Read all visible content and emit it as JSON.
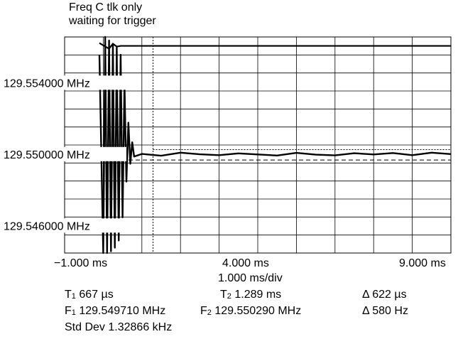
{
  "status": {
    "line1": "Freq C tlk only",
    "line2": "waiting for trigger"
  },
  "chart_data": {
    "type": "line",
    "title": "",
    "y_tick_labels": [
      "129.554000 MHz",
      "129.550000 MHz",
      "129.546000 MHz"
    ],
    "y_ticks_mhz": [
      129.554,
      129.55,
      129.546
    ],
    "x_tick_labels": [
      "−1.000 ms",
      "4.000 ms",
      "9.000 ms"
    ],
    "x_ticks_ms": [
      -1.0,
      4.0,
      9.0
    ],
    "x_range_ms": [
      -1.0,
      9.0
    ],
    "y_range_mhz": [
      129.5445,
      129.5566
    ],
    "timebase": "1.000 ms/div",
    "grid": true,
    "divisions": {
      "x": 10,
      "y": 12
    },
    "markers": {
      "t1_ms": 0.667,
      "t2_ms": 1.289,
      "f1_mhz": 129.54971,
      "f2_mhz": 129.55029
    },
    "series": [
      {
        "x": [
          -0.1,
          0.0,
          0.05,
          0.1,
          0.15,
          0.2,
          0.25,
          0.3,
          0.35,
          0.4,
          0.45,
          0.5,
          0.55,
          0.6,
          0.65,
          0.7,
          0.75,
          0.8,
          1.0,
          1.5,
          2.0,
          2.5,
          3.0,
          3.5,
          4.0,
          4.5,
          5.0,
          5.5,
          6.0,
          6.5,
          7.0,
          7.5,
          8.0,
          8.5,
          9.0
        ],
        "y": [
          129.5556,
          129.5445,
          129.5566,
          129.5445,
          129.5564,
          129.5446,
          129.5562,
          129.5448,
          129.556,
          129.5452,
          129.5556,
          129.5465,
          129.554,
          129.5485,
          129.5518,
          129.5495,
          129.5507,
          129.5499,
          129.55005,
          129.54995,
          129.55012,
          129.55003,
          129.54998,
          129.55008,
          129.55002,
          129.54996,
          129.55011,
          129.55001,
          129.54997,
          129.55009,
          129.55002,
          129.5501,
          129.54998,
          129.55012,
          129.55004
        ]
      }
    ],
    "upper_trace_mhz": 129.5561
  },
  "measurements": {
    "t1_label": "667 µs",
    "t2_label": "1.289 ms",
    "dt_label": "622 µs",
    "f1_label": "129.549710 MHz",
    "f2_label": "129.550290 MHz",
    "df_label": "580 Hz",
    "std_dev_label": "1.32866 kHz",
    "std_dev_prefix": "Std Dev"
  }
}
